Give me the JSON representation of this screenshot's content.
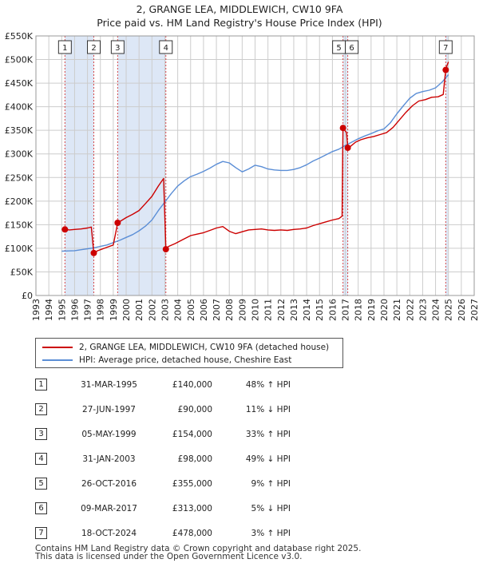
{
  "title_line1": "2, GRANGE LEA, MIDDLEWICH, CW10 9FA",
  "title_line2": "Price paid vs. HM Land Registry's House Price Index (HPI)",
  "colors": {
    "property": "#cc0000",
    "hpi": "#5b8ed6",
    "shade": "#dde7f6",
    "grid": "#cccccc"
  },
  "chart_data": {
    "type": "line",
    "xlim": [
      1993,
      2027
    ],
    "ylim": [
      0,
      550000
    ],
    "x_ticks": [
      "1993",
      "1994",
      "1995",
      "1996",
      "1997",
      "1998",
      "1999",
      "2000",
      "2001",
      "2002",
      "2003",
      "2004",
      "2005",
      "2006",
      "2007",
      "2008",
      "2009",
      "2010",
      "2011",
      "2012",
      "2013",
      "2014",
      "2015",
      "2016",
      "2017",
      "2018",
      "2019",
      "2020",
      "2021",
      "2022",
      "2023",
      "2024",
      "2025",
      "2026",
      "2027"
    ],
    "y_ticks": [
      {
        "value": 0,
        "label": "£0"
      },
      {
        "value": 50000,
        "label": "£50K"
      },
      {
        "value": 100000,
        "label": "£100K"
      },
      {
        "value": 150000,
        "label": "£150K"
      },
      {
        "value": 200000,
        "label": "£200K"
      },
      {
        "value": 250000,
        "label": "£250K"
      },
      {
        "value": 300000,
        "label": "£300K"
      },
      {
        "value": 350000,
        "label": "£350K"
      },
      {
        "value": 400000,
        "label": "£400K"
      },
      {
        "value": 450000,
        "label": "£450K"
      },
      {
        "value": 500000,
        "label": "£500K"
      },
      {
        "value": 550000,
        "label": "£550K"
      }
    ],
    "grid": true,
    "shaded_ranges": [
      [
        1995.25,
        1997.49
      ],
      [
        1999.34,
        2003.08
      ],
      [
        2016.82,
        2017.19
      ],
      [
        2024.79,
        2025.0
      ]
    ],
    "sales": [
      {
        "id": "1",
        "x": 1995.25,
        "y": 140000
      },
      {
        "id": "2",
        "x": 1997.49,
        "y": 90000
      },
      {
        "id": "3",
        "x": 1999.34,
        "y": 154000
      },
      {
        "id": "4",
        "x": 2003.08,
        "y": 98000
      },
      {
        "id": "5",
        "x": 2016.82,
        "y": 355000
      },
      {
        "id": "6",
        "x": 2017.19,
        "y": 313000
      },
      {
        "id": "7",
        "x": 2024.79,
        "y": 478000
      }
    ],
    "series": [
      {
        "name": "2, GRANGE LEA, MIDDLEWICH, CW10 9FA (detached house)",
        "color": "#cc0000",
        "x": [
          1995.0,
          1995.25,
          1995.6,
          1996.0,
          1996.5,
          1997.0,
          1997.3,
          1997.49,
          1997.8,
          1998.2,
          1998.6,
          1999.0,
          1999.34,
          1999.7,
          2000.0,
          2000.5,
          2001.0,
          2001.5,
          2002.0,
          2002.5,
          2002.9,
          2003.08,
          2003.3,
          2003.8,
          2004.5,
          2005.0,
          2005.5,
          2006.0,
          2006.5,
          2007.0,
          2007.5,
          2008.0,
          2008.5,
          2009.0,
          2009.5,
          2010.0,
          2010.5,
          2011.0,
          2011.5,
          2012.0,
          2012.5,
          2013.0,
          2013.5,
          2014.0,
          2014.5,
          2015.0,
          2015.5,
          2016.0,
          2016.5,
          2016.75,
          2016.82,
          2016.9,
          2017.1,
          2017.19,
          2017.4,
          2017.8,
          2018.2,
          2018.7,
          2019.2,
          2019.7,
          2020.2,
          2020.7,
          2021.2,
          2021.7,
          2022.2,
          2022.7,
          2023.2,
          2023.7,
          2024.2,
          2024.6,
          2024.79,
          2024.9,
          2025.0
        ],
        "y": [
          140000,
          140000,
          139000,
          140000,
          141000,
          143000,
          145000,
          90000,
          95000,
          99000,
          103000,
          107000,
          154000,
          160000,
          165000,
          172000,
          180000,
          195000,
          210000,
          232000,
          248000,
          98000,
          104000,
          110000,
          120000,
          127000,
          130000,
          133000,
          138000,
          143000,
          146000,
          136000,
          131000,
          135000,
          139000,
          140000,
          141000,
          139000,
          138000,
          139000,
          138000,
          140000,
          141000,
          143000,
          148000,
          152000,
          156000,
          160000,
          163000,
          168000,
          355000,
          352000,
          345000,
          313000,
          316000,
          325000,
          330000,
          334000,
          337000,
          341000,
          345000,
          356000,
          372000,
          388000,
          402000,
          412000,
          415000,
          420000,
          421000,
          426000,
          478000,
          488000,
          495000
        ]
      },
      {
        "name": "HPI: Average price, detached house, Cheshire East",
        "color": "#5b8ed6",
        "x": [
          1995.0,
          1995.5,
          1996.0,
          1996.5,
          1997.0,
          1997.5,
          1998.0,
          1998.5,
          1999.0,
          1999.5,
          2000.0,
          2000.5,
          2001.0,
          2001.5,
          2002.0,
          2002.5,
          2003.0,
          2003.5,
          2004.0,
          2004.5,
          2005.0,
          2005.5,
          2006.0,
          2006.5,
          2007.0,
          2007.5,
          2008.0,
          2008.5,
          2009.0,
          2009.5,
          2010.0,
          2010.5,
          2011.0,
          2011.5,
          2012.0,
          2012.5,
          2013.0,
          2013.5,
          2014.0,
          2014.5,
          2015.0,
          2015.5,
          2016.0,
          2016.5,
          2017.0,
          2017.5,
          2018.0,
          2018.5,
          2019.0,
          2019.5,
          2020.0,
          2020.5,
          2021.0,
          2021.5,
          2022.0,
          2022.5,
          2023.0,
          2023.5,
          2024.0,
          2024.5,
          2025.0
        ],
        "y": [
          94000,
          94500,
          95000,
          97000,
          99000,
          101000,
          104000,
          107000,
          112000,
          117000,
          123000,
          129000,
          137000,
          147000,
          160000,
          180000,
          198000,
          216000,
          232000,
          243000,
          252000,
          257000,
          263000,
          270000,
          278000,
          284000,
          281000,
          271000,
          262000,
          268000,
          276000,
          273000,
          268000,
          266000,
          265000,
          265000,
          267000,
          271000,
          277000,
          285000,
          291000,
          298000,
          305000,
          310000,
          318000,
          325000,
          332000,
          338000,
          343000,
          349000,
          353000,
          366000,
          385000,
          402000,
          418000,
          428000,
          432000,
          435000,
          440000,
          452000,
          468000
        ]
      }
    ]
  },
  "legend": {
    "property_label": "2, GRANGE LEA, MIDDLEWICH, CW10 9FA (detached house)",
    "hpi_label": "HPI: Average price, detached house, Cheshire East"
  },
  "transactions": [
    {
      "num": "1",
      "date": "31-MAR-1995",
      "price": "£140,000",
      "hpi": "48% ↑ HPI"
    },
    {
      "num": "2",
      "date": "27-JUN-1997",
      "price": "£90,000",
      "hpi": "11% ↓ HPI"
    },
    {
      "num": "3",
      "date": "05-MAY-1999",
      "price": "£154,000",
      "hpi": "33% ↑ HPI"
    },
    {
      "num": "4",
      "date": "31-JAN-2003",
      "price": "£98,000",
      "hpi": "49% ↓ HPI"
    },
    {
      "num": "5",
      "date": "26-OCT-2016",
      "price": "£355,000",
      "hpi": "9% ↑ HPI"
    },
    {
      "num": "6",
      "date": "09-MAR-2017",
      "price": "£313,000",
      "hpi": "5% ↓ HPI"
    },
    {
      "num": "7",
      "date": "18-OCT-2024",
      "price": "£478,000",
      "hpi": "3% ↑ HPI"
    }
  ],
  "footer_line1": "Contains HM Land Registry data © Crown copyright and database right 2025.",
  "footer_line2": "This data is licensed under the Open Government Licence v3.0."
}
